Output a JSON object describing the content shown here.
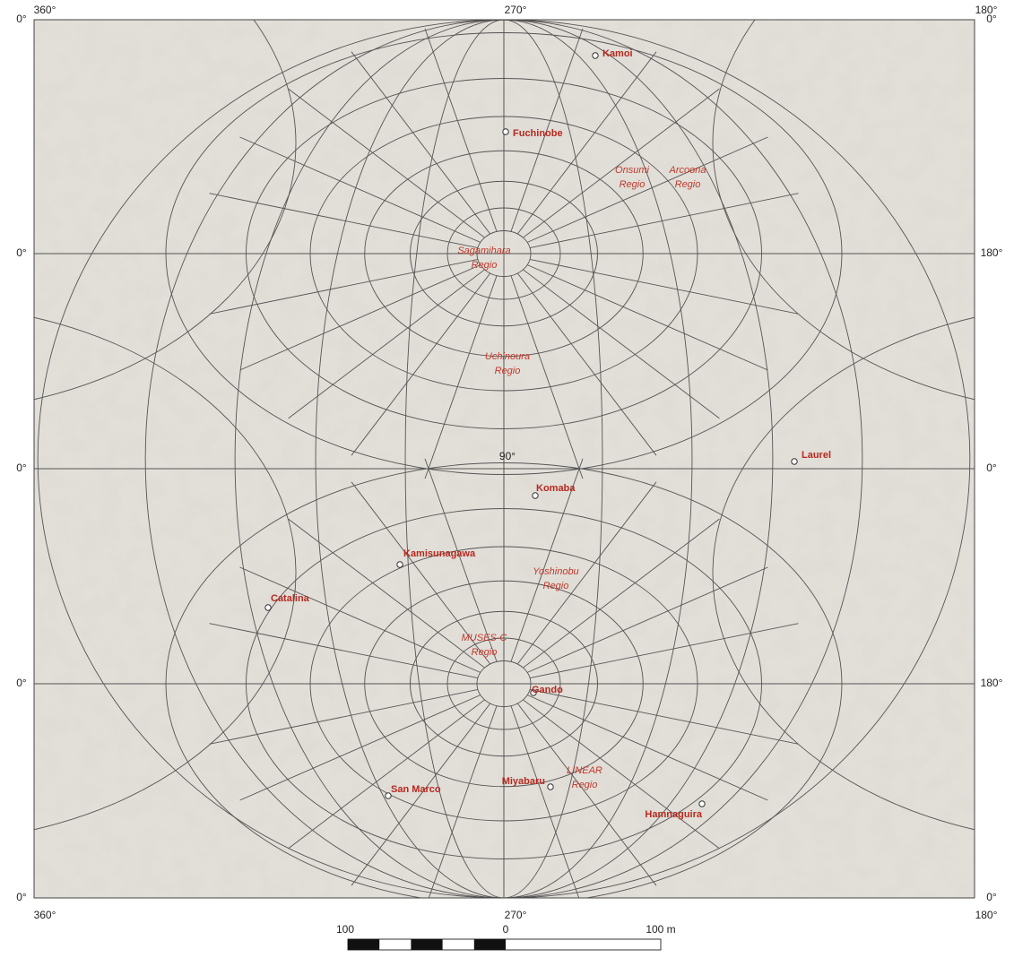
{
  "map": {
    "top_labels": [
      "360°",
      "270°",
      "180°"
    ],
    "bottom_labels": [
      "360°",
      "270°",
      "180°"
    ],
    "left_labels": [
      "0°",
      "0°",
      "0°",
      "0°",
      "0°"
    ],
    "right_labels": [
      "0°",
      "180°",
      "0°",
      "180°",
      "0°"
    ],
    "center_label": "90°",
    "craters": [
      {
        "name": "Kamoi"
      },
      {
        "name": "Fuchinobe"
      },
      {
        "name": "Laurel"
      },
      {
        "name": "Komaba"
      },
      {
        "name": "Kamisunagawa"
      },
      {
        "name": "Catalina"
      },
      {
        "name": "Gando"
      },
      {
        "name": "San Marco"
      },
      {
        "name": "Miyabaru"
      },
      {
        "name": "Hamnaguira"
      }
    ],
    "regions": [
      {
        "lines": [
          "Onsumi",
          "Regio"
        ]
      },
      {
        "lines": [
          "Arcoona",
          "Regio"
        ]
      },
      {
        "lines": [
          "Sagamihara",
          "Regio"
        ]
      },
      {
        "lines": [
          "Uchinoura",
          "Regio"
        ]
      },
      {
        "lines": [
          "Yoshinobu",
          "Regio"
        ]
      },
      {
        "lines": [
          "MUSES-C",
          "Regio"
        ]
      },
      {
        "lines": [
          "LINEAR",
          "Regio"
        ]
      }
    ],
    "scale_labels": [
      "100",
      "0",
      "100 m"
    ]
  }
}
